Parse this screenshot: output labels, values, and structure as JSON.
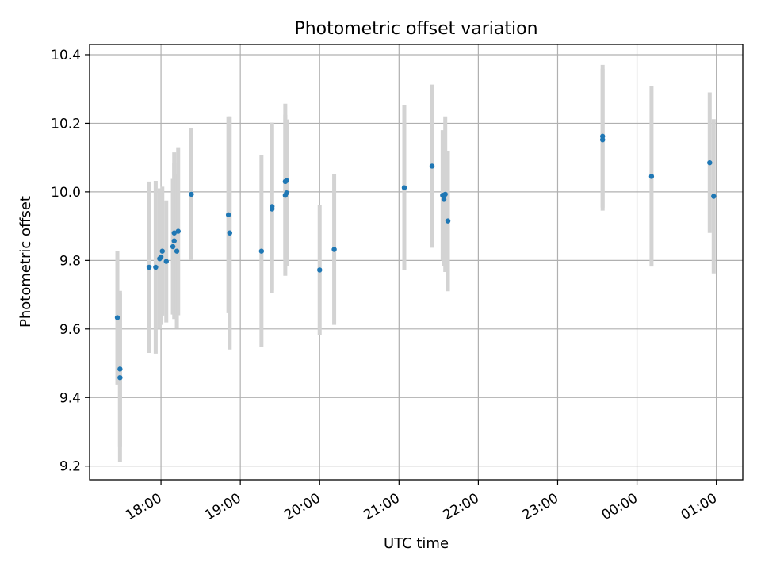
{
  "chart_data": {
    "type": "scatter",
    "title": "Photometric offset variation",
    "xlabel": "UTC time",
    "ylabel": "Photometric offset",
    "x_unit": "UTC time (hh:mm)",
    "xlim": [
      "17:06",
      "01:20"
    ],
    "ylim": [
      9.16,
      10.43
    ],
    "grid": true,
    "x_ticks": [
      "18:00",
      "19:00",
      "20:00",
      "21:00",
      "22:00",
      "23:00",
      "00:00",
      "01:00"
    ],
    "y_ticks": [
      "9.2",
      "9.4",
      "9.6",
      "9.8",
      "10.0",
      "10.2",
      "10.4"
    ],
    "colors": {
      "marker": "#1f77b4",
      "errorbar": "#d3d3d3",
      "grid": "#b0b0b0"
    },
    "series": [
      {
        "points": [
          {
            "time": "17:27",
            "y": 9.633,
            "err": 0.195
          },
          {
            "time": "17:29",
            "y": 9.458,
            "err": 0.245
          },
          {
            "time": "17:29",
            "y": 9.483,
            "err": 0.228
          },
          {
            "time": "17:51",
            "y": 9.78,
            "err": 0.25
          },
          {
            "time": "17:56",
            "y": 9.78,
            "err": 0.252
          },
          {
            "time": "17:59",
            "y": 9.805,
            "err": 0.205
          },
          {
            "time": "18:00",
            "y": 9.81,
            "err": 0.198
          },
          {
            "time": "18:01",
            "y": 9.827,
            "err": 0.188
          },
          {
            "time": "18:04",
            "y": 9.797,
            "err": 0.178
          },
          {
            "time": "18:09",
            "y": 9.84,
            "err": 0.198
          },
          {
            "time": "18:10",
            "y": 9.857,
            "err": 0.228
          },
          {
            "time": "18:10",
            "y": 9.88,
            "err": 0.235
          },
          {
            "time": "18:12",
            "y": 9.827,
            "err": 0.225
          },
          {
            "time": "18:13",
            "y": 9.885,
            "err": 0.245
          },
          {
            "time": "18:23",
            "y": 9.993,
            "err": 0.192
          },
          {
            "time": "18:51",
            "y": 9.933,
            "err": 0.287
          },
          {
            "time": "18:52",
            "y": 9.88,
            "err": 0.34
          },
          {
            "time": "19:16",
            "y": 9.827,
            "err": 0.28
          },
          {
            "time": "19:24",
            "y": 9.957,
            "err": 0.245
          },
          {
            "time": "19:24",
            "y": 9.95,
            "err": 0.245
          },
          {
            "time": "19:34",
            "y": 10.03,
            "err": 0.227
          },
          {
            "time": "19:34",
            "y": 9.99,
            "err": 0.235
          },
          {
            "time": "19:35",
            "y": 10.033,
            "err": 0.178
          },
          {
            "time": "19:35",
            "y": 9.997,
            "err": 0.213
          },
          {
            "time": "20:00",
            "y": 9.772,
            "err": 0.19
          },
          {
            "time": "20:11",
            "y": 9.832,
            "err": 0.22
          },
          {
            "time": "21:04",
            "y": 10.012,
            "err": 0.24
          },
          {
            "time": "21:25",
            "y": 10.075,
            "err": 0.238
          },
          {
            "time": "21:33",
            "y": 9.99,
            "err": 0.19
          },
          {
            "time": "21:34",
            "y": 9.978,
            "err": 0.195
          },
          {
            "time": "21:35",
            "y": 9.993,
            "err": 0.227
          },
          {
            "time": "21:37",
            "y": 9.915,
            "err": 0.205
          },
          {
            "time": "23:34",
            "y": 10.162,
            "err": 0.208
          },
          {
            "time": "23:34",
            "y": 10.152,
            "err": 0.207
          },
          {
            "time": "00:11",
            "y": 10.045,
            "err": 0.263
          },
          {
            "time": "00:55",
            "y": 10.085,
            "err": 0.205
          },
          {
            "time": "00:58",
            "y": 9.987,
            "err": 0.225
          }
        ]
      }
    ]
  }
}
